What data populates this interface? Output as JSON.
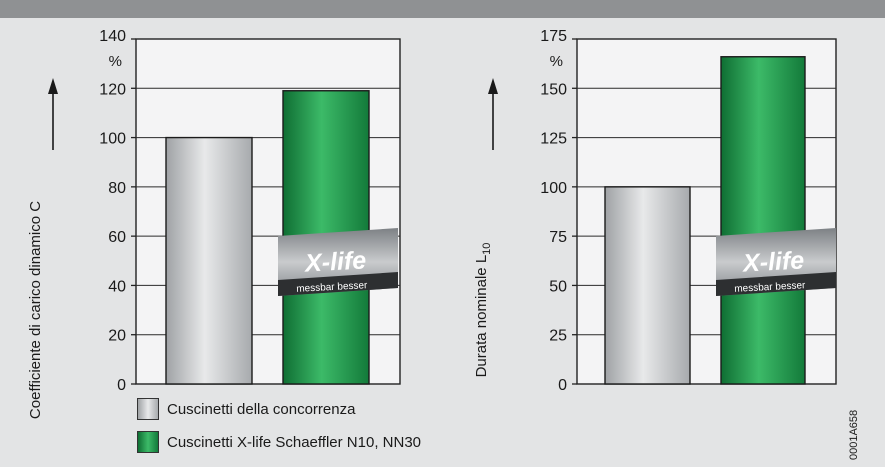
{
  "chart_data": [
    {
      "type": "bar",
      "ylabel": "Coefficiente di carico dinamico C",
      "unit": "%",
      "ylim": [
        0,
        140
      ],
      "yticks": [
        0,
        20,
        40,
        60,
        80,
        100,
        120,
        140
      ],
      "series": [
        {
          "name": "Cuscinetti della concorrenza",
          "values": [
            100
          ]
        },
        {
          "name": "Cuscinetti X-life Schaeffler N10, NN30",
          "values": [
            119
          ]
        }
      ],
      "grid": true,
      "logo": "X-life messbar besser"
    },
    {
      "type": "bar",
      "ylabel": "Durata nominale L10",
      "ylabel_main": "Durata nominale L",
      "ylabel_sub": "10",
      "unit": "%",
      "ylim": [
        0,
        175
      ],
      "yticks": [
        0,
        25,
        50,
        75,
        100,
        125,
        150,
        175
      ],
      "series": [
        {
          "name": "Cuscinetti della concorrenza",
          "values": [
            100
          ]
        },
        {
          "name": "Cuscinetti X-life Schaeffler N10, NN30",
          "values": [
            166
          ]
        }
      ],
      "grid": true,
      "logo": "X-life messbar besser"
    }
  ],
  "legend": [
    {
      "label": "Cuscinetti della concorrenza",
      "color": "#c4c6c8"
    },
    {
      "label": "Cuscinetti X-life Schaeffler N10, NN30",
      "color": "#1e9a4d"
    }
  ],
  "logo": {
    "main": "X-life",
    "sub": "messbar besser"
  },
  "figure_code": "0001A658",
  "colors": {
    "grey_bar": "#c4c6c8",
    "green_bar": "#1e9a4d",
    "background": "#e3e4e5"
  }
}
